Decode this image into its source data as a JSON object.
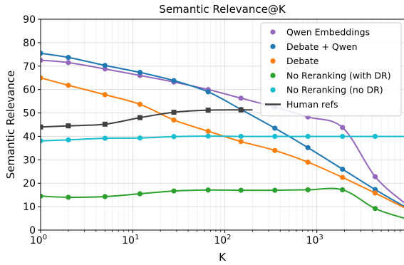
{
  "chart_data": {
    "type": "line",
    "title": "Semantic Relevance@K",
    "xlabel": "K",
    "ylabel": "Semantic Relevance",
    "xscale": "log",
    "xlim": [
      1,
      9000
    ],
    "ylim": [
      0,
      90
    ],
    "yticks": [
      0,
      10,
      20,
      30,
      40,
      50,
      60,
      70,
      80,
      90
    ],
    "xticks": [
      {
        "value": 1,
        "base": "10",
        "exp": "0"
      },
      {
        "value": 10,
        "base": "10",
        "exp": "1"
      },
      {
        "value": 100,
        "base": "10",
        "exp": "2"
      },
      {
        "value": 1000,
        "base": "10",
        "exp": "3"
      }
    ],
    "grid": true,
    "legend_position": "top-right",
    "series": [
      {
        "name": "Qwen Embeddings",
        "color": "#9467bd",
        "marker": "circle",
        "points": [
          [
            1,
            72.5
          ],
          [
            2,
            71.5
          ],
          [
            5,
            68.8
          ],
          [
            12,
            66
          ],
          [
            28,
            63.2
          ],
          [
            66,
            60
          ],
          [
            150,
            56.3
          ],
          [
            350,
            52.5
          ],
          [
            800,
            48.3
          ],
          [
            1900,
            43.8
          ],
          [
            4300,
            22.8
          ],
          [
            9000,
            11.5
          ]
        ]
      },
      {
        "name": "Debate + Qwen",
        "color": "#1f77b4",
        "marker": "circle",
        "points": [
          [
            1,
            75.5
          ],
          [
            2,
            73.7
          ],
          [
            5,
            70.3
          ],
          [
            12,
            67.3
          ],
          [
            28,
            63.8
          ],
          [
            66,
            59
          ],
          [
            150,
            51.5
          ],
          [
            350,
            43.5
          ],
          [
            800,
            35.2
          ],
          [
            1900,
            26
          ],
          [
            4300,
            17.3
          ],
          [
            9000,
            10
          ]
        ]
      },
      {
        "name": "Debate",
        "color": "#ff7f0e",
        "marker": "circle",
        "points": [
          [
            1,
            65
          ],
          [
            2,
            61.8
          ],
          [
            5,
            57.8
          ],
          [
            12,
            53.7
          ],
          [
            28,
            47
          ],
          [
            66,
            42.2
          ],
          [
            150,
            37.8
          ],
          [
            350,
            34
          ],
          [
            800,
            29
          ],
          [
            1900,
            22.5
          ],
          [
            4300,
            15.8
          ],
          [
            9000,
            9.5
          ]
        ]
      },
      {
        "name": "No Reranking (with DR)",
        "color": "#2ca02c",
        "marker": "circle",
        "points": [
          [
            1,
            14.5
          ],
          [
            2,
            14
          ],
          [
            5,
            14.3
          ],
          [
            12,
            15.5
          ],
          [
            28,
            16.7
          ],
          [
            66,
            17.1
          ],
          [
            150,
            17
          ],
          [
            350,
            17
          ],
          [
            800,
            17.2
          ],
          [
            1900,
            17.2
          ],
          [
            4300,
            9.2
          ],
          [
            9000,
            5
          ]
        ]
      },
      {
        "name": "No Reranking (no DR)",
        "color": "#17becf",
        "marker": "circle",
        "points": [
          [
            1,
            38.1
          ],
          [
            2,
            38.5
          ],
          [
            5,
            39.2
          ],
          [
            12,
            39.3
          ],
          [
            28,
            39.9
          ],
          [
            66,
            40.1
          ],
          [
            150,
            40
          ],
          [
            350,
            40
          ],
          [
            800,
            40
          ],
          [
            1900,
            40
          ],
          [
            4300,
            40
          ],
          [
            9000,
            40
          ]
        ]
      },
      {
        "name": "Human refs",
        "color": "#404040",
        "marker": "square",
        "points": [
          [
            1,
            44
          ],
          [
            2,
            44.5
          ],
          [
            5,
            45.2
          ],
          [
            12,
            48
          ],
          [
            28,
            50.3
          ],
          [
            66,
            51.2
          ],
          [
            150,
            51.3
          ],
          [
            200,
            51.3
          ]
        ]
      }
    ]
  }
}
